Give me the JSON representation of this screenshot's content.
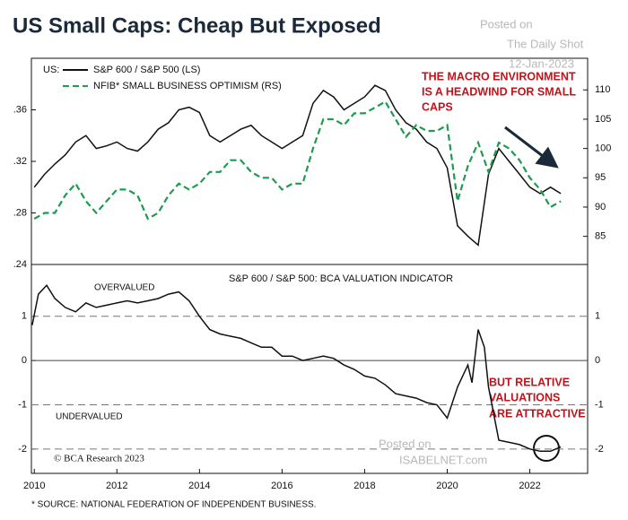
{
  "title": "US Small Caps: Cheap But Exposed",
  "watermarks": [
    "Posted on",
    "The Daily Shot",
    "12-Jan-2023",
    "Posted on",
    "ISABELNET.com"
  ],
  "credit": "© BCA Research 2023",
  "footer": "* SOURCE: NATIONAL FEDERATION OF INDEPENDENT BUSINESS.",
  "chart_data": [
    {
      "type": "line",
      "legend_title": "US:",
      "annotation": [
        "THE MACRO ENVIRONMENT",
        "IS A HEADWIND FOR SMALL",
        "CAPS"
      ],
      "x": [
        2010,
        2010.25,
        2010.5,
        2010.75,
        2011,
        2011.25,
        2011.5,
        2011.75,
        2012,
        2012.25,
        2012.5,
        2012.75,
        2013,
        2013.25,
        2013.5,
        2013.75,
        2014,
        2014.25,
        2014.5,
        2014.75,
        2015,
        2015.25,
        2015.5,
        2015.75,
        2016,
        2016.25,
        2016.5,
        2016.75,
        2017,
        2017.25,
        2017.5,
        2017.75,
        2018,
        2018.25,
        2018.5,
        2018.75,
        2019,
        2019.25,
        2019.5,
        2019.75,
        2020,
        2020.25,
        2020.5,
        2020.75,
        2021,
        2021.25,
        2021.5,
        2021.75,
        2022,
        2022.25,
        2022.5,
        2022.75
      ],
      "xlim": [
        2009.93,
        2023.4
      ],
      "ylim": [
        0.24,
        0.4
      ],
      "yticks": [
        {
          "value": 0.24,
          "label": ".24"
        },
        {
          "value": 0.28,
          "label": ".28"
        },
        {
          "value": 0.32,
          "label": ".32"
        },
        {
          "value": 0.36,
          "label": ".36"
        }
      ],
      "y2lim": [
        80.2,
        115.4
      ],
      "y2ticks": [
        85,
        90,
        95,
        100,
        105,
        110
      ],
      "series": [
        {
          "name": "S&P 600 / S&P 500 (LS)",
          "color": "#111111",
          "dash": false,
          "values": [
            0.3,
            0.31,
            0.318,
            0.325,
            0.335,
            0.34,
            0.33,
            0.332,
            0.335,
            0.33,
            0.328,
            0.335,
            0.345,
            0.35,
            0.36,
            0.362,
            0.358,
            0.34,
            0.335,
            0.34,
            0.345,
            0.348,
            0.34,
            0.335,
            0.33,
            0.335,
            0.34,
            0.365,
            0.375,
            0.37,
            0.36,
            0.365,
            0.37,
            0.379,
            0.375,
            0.36,
            0.35,
            0.345,
            0.335,
            0.33,
            0.315,
            0.27,
            0.262,
            0.255,
            0.31,
            0.33,
            0.32,
            0.31,
            0.3,
            0.295,
            0.3,
            0.295
          ]
        },
        {
          "name": "NFIB* SMALL BUSINESS OPTIMISM (RS)",
          "color": "#1f9a50",
          "dash": true,
          "axis": "y2",
          "values": [
            88,
            89,
            89,
            92,
            94,
            91,
            89,
            91,
            93,
            93,
            92,
            88,
            89,
            92,
            94,
            93,
            94,
            96,
            96,
            98,
            98,
            96,
            95,
            95,
            93,
            94,
            94,
            100,
            105,
            105,
            104,
            106,
            106,
            107,
            108,
            105,
            102,
            104,
            103,
            103,
            104,
            91,
            97,
            101,
            96,
            101,
            100,
            98,
            95,
            93,
            90,
            91
          ]
        }
      ]
    },
    {
      "type": "line",
      "title": "S&P 600 / S&P 500: BCA VALUATION INDICATOR",
      "labels": [
        "OVERVALUED",
        "UNDERVALUED"
      ],
      "annotation": [
        "BUT RELATIVE",
        "VALUATIONS",
        "ARE ATTRACTIVE"
      ],
      "x": [
        2009.95,
        2010.1,
        2010.3,
        2010.5,
        2010.75,
        2011,
        2011.25,
        2011.5,
        2011.75,
        2012,
        2012.25,
        2012.5,
        2012.75,
        2013,
        2013.25,
        2013.5,
        2013.75,
        2014,
        2014.25,
        2014.5,
        2014.75,
        2015,
        2015.25,
        2015.5,
        2015.75,
        2016,
        2016.25,
        2016.5,
        2016.75,
        2017,
        2017.25,
        2017.5,
        2017.75,
        2018,
        2018.25,
        2018.5,
        2018.75,
        2019,
        2019.25,
        2019.5,
        2019.75,
        2020,
        2020.25,
        2020.5,
        2020.6,
        2020.75,
        2020.9,
        2021,
        2021.25,
        2021.5,
        2021.75,
        2022,
        2022.25,
        2022.5,
        2022.75
      ],
      "xlim": [
        2009.93,
        2023.4
      ],
      "xticks": [
        2010,
        2012,
        2014,
        2016,
        2018,
        2020,
        2022
      ],
      "ylim": [
        -2.55,
        2.17
      ],
      "yticks": [
        -2,
        -1,
        0,
        1
      ],
      "grid": true,
      "series": [
        {
          "name": "BCA valuation indicator",
          "color": "#111111",
          "values": [
            0.8,
            1.5,
            1.7,
            1.4,
            1.2,
            1.1,
            1.3,
            1.2,
            1.25,
            1.3,
            1.35,
            1.3,
            1.35,
            1.4,
            1.5,
            1.55,
            1.35,
            1.0,
            0.7,
            0.6,
            0.55,
            0.5,
            0.4,
            0.3,
            0.3,
            0.1,
            0.1,
            0,
            0.05,
            0.1,
            0.05,
            -0.1,
            -0.2,
            -0.35,
            -0.4,
            -0.55,
            -0.75,
            -0.8,
            -0.85,
            -0.95,
            -1.0,
            -1.3,
            -0.6,
            -0.1,
            -0.5,
            0.7,
            0.3,
            -0.6,
            -1.8,
            -1.85,
            -1.9,
            -2.0,
            -2.05,
            -2.05,
            -1.95
          ]
        }
      ]
    }
  ]
}
